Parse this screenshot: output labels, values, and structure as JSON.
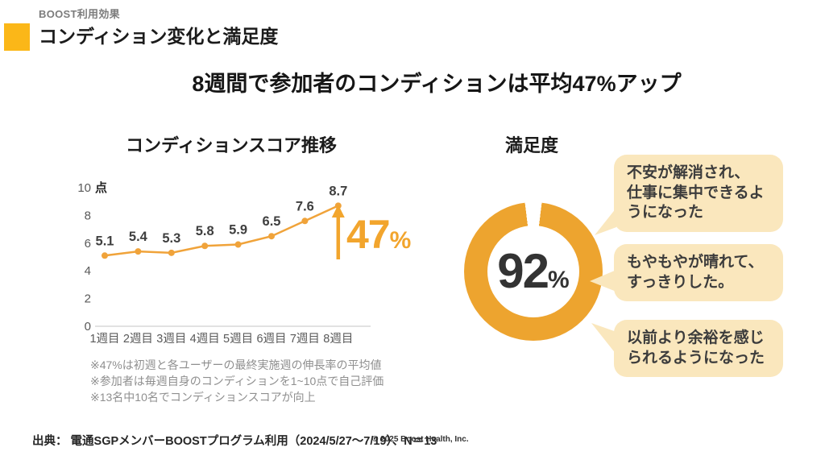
{
  "header": {
    "eyebrow": "BOOST利用効果",
    "title": "コンディション変化と満足度",
    "accent_color": "#FBB718"
  },
  "headline": "8週間で参加者のコンディションは平均47%アップ",
  "chart_data": [
    {
      "type": "line",
      "title": "コンディションスコア推移",
      "categories": [
        "1週目",
        "2週目",
        "3週目",
        "4週目",
        "5週目",
        "6週目",
        "7週目",
        "8週目"
      ],
      "values": [
        5.1,
        5.4,
        5.3,
        5.8,
        5.9,
        6.5,
        7.6,
        8.7
      ],
      "unit": "点",
      "yticks": [
        0,
        2,
        4,
        6,
        8,
        10
      ],
      "ylim": [
        0,
        10
      ],
      "line_color": "#F0A33A",
      "accent_color": "#F2A52D",
      "annotation": {
        "value": "47",
        "unit": "%"
      }
    },
    {
      "type": "donut",
      "title": "満足度",
      "value": 92,
      "unit": "%",
      "ring_color": "#EDA42F"
    }
  ],
  "testimonials": [
    "不安が解消され、\n仕事に集中できるよ\nうになった",
    "もやもやが晴れて、\nすっきりした。",
    "以前より余裕を感じ\nられるようになった"
  ],
  "footnotes": [
    "※47%は初週と各ユーザーの最終実施週の伸長率の平均値",
    "※参加者は毎週自身のコンディションを1~10点で自己評価",
    "※13名中10名でコンディションスコアが向上"
  ],
  "footer": {
    "source": "出典： 電通SGPメンバーBOOSTプログラム利用（2024/5/27〜7/19）、N＝13",
    "copyright": "© 2025 Boost Health, Inc."
  }
}
